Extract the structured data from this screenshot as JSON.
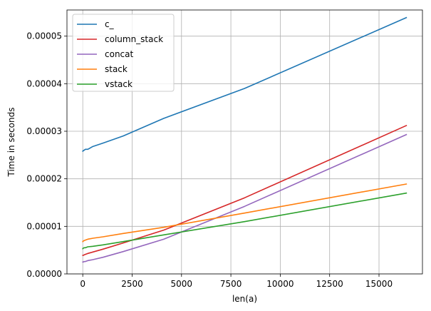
{
  "chart_data": {
    "type": "line",
    "title": "",
    "xlabel": "len(a)",
    "ylabel": "Time in seconds",
    "xlim": [
      -800,
      17200
    ],
    "ylim": [
      0,
      5.55e-05
    ],
    "xticks": [
      0,
      2500,
      5000,
      7500,
      10000,
      12500,
      15000
    ],
    "xtick_labels": [
      "0",
      "2500",
      "5000",
      "7500",
      "10000",
      "12500",
      "15000"
    ],
    "yticks": [
      0,
      1e-05,
      2e-05,
      3e-05,
      4e-05,
      5e-05
    ],
    "ytick_labels": [
      "0.00000",
      "0.00001",
      "0.00002",
      "0.00003",
      "0.00004",
      "0.00005"
    ],
    "grid": true,
    "legend_position": "top-left",
    "series": [
      {
        "name": "c_",
        "color": "#1f77b4",
        "x": [
          1,
          2,
          4,
          8,
          16,
          32,
          64,
          128,
          256,
          512,
          1024,
          2048,
          4096,
          8192,
          16384
        ],
        "y": [
          2.58e-05,
          2.58e-05,
          2.58e-05,
          2.58e-05,
          2.59e-05,
          2.59e-05,
          2.6e-05,
          2.62e-05,
          2.62e-05,
          2.68e-05,
          2.75e-05,
          2.9e-05,
          3.27e-05,
          3.9e-05,
          5.39e-05
        ]
      },
      {
        "name": "column_stack",
        "color": "#d62728",
        "x": [
          1,
          2,
          4,
          8,
          16,
          32,
          64,
          128,
          256,
          512,
          1024,
          2048,
          4096,
          8192,
          16384
        ],
        "y": [
          3.9e-06,
          3.9e-06,
          3.9e-06,
          3.9e-06,
          3.9e-06,
          3.9e-06,
          4e-06,
          4.1e-06,
          4.3e-06,
          4.6e-06,
          5.2e-06,
          6.5e-06,
          9.2e-06,
          1.6e-05,
          3.12e-05
        ]
      },
      {
        "name": "concat",
        "color": "#9467bd",
        "x": [
          1,
          2,
          4,
          8,
          16,
          32,
          64,
          128,
          256,
          512,
          1024,
          2048,
          4096,
          8192,
          16384
        ],
        "y": [
          2.5e-06,
          2.5e-06,
          2.5e-06,
          2.5e-06,
          2.5e-06,
          2.5e-06,
          2.6e-06,
          2.6e-06,
          2.8e-06,
          3e-06,
          3.5e-06,
          4.7e-06,
          7.3e-06,
          1.42e-05,
          2.93e-05
        ]
      },
      {
        "name": "stack",
        "color": "#ff7f0e",
        "x": [
          1,
          2,
          4,
          8,
          16,
          32,
          64,
          128,
          256,
          512,
          1024,
          2048,
          4096,
          8192,
          16384
        ],
        "y": [
          6.8e-06,
          6.8e-06,
          6.8e-06,
          6.8e-06,
          6.9e-06,
          6.9e-06,
          7e-06,
          7.1e-06,
          7.3e-06,
          7.5e-06,
          7.8e-06,
          8.5e-06,
          9.8e-06,
          1.28e-05,
          1.89e-05
        ]
      },
      {
        "name": "vstack",
        "color": "#2ca02c",
        "x": [
          1,
          2,
          4,
          8,
          16,
          32,
          64,
          128,
          256,
          512,
          1024,
          2048,
          4096,
          8192,
          16384
        ],
        "y": [
          5.3e-06,
          5.3e-06,
          5.3e-06,
          5.3e-06,
          5.4e-06,
          5.4e-06,
          5.5e-06,
          5.5e-06,
          5.7e-06,
          5.8e-06,
          6.1e-06,
          6.8e-06,
          8.2e-06,
          1.1e-05,
          1.7e-05
        ]
      }
    ]
  }
}
